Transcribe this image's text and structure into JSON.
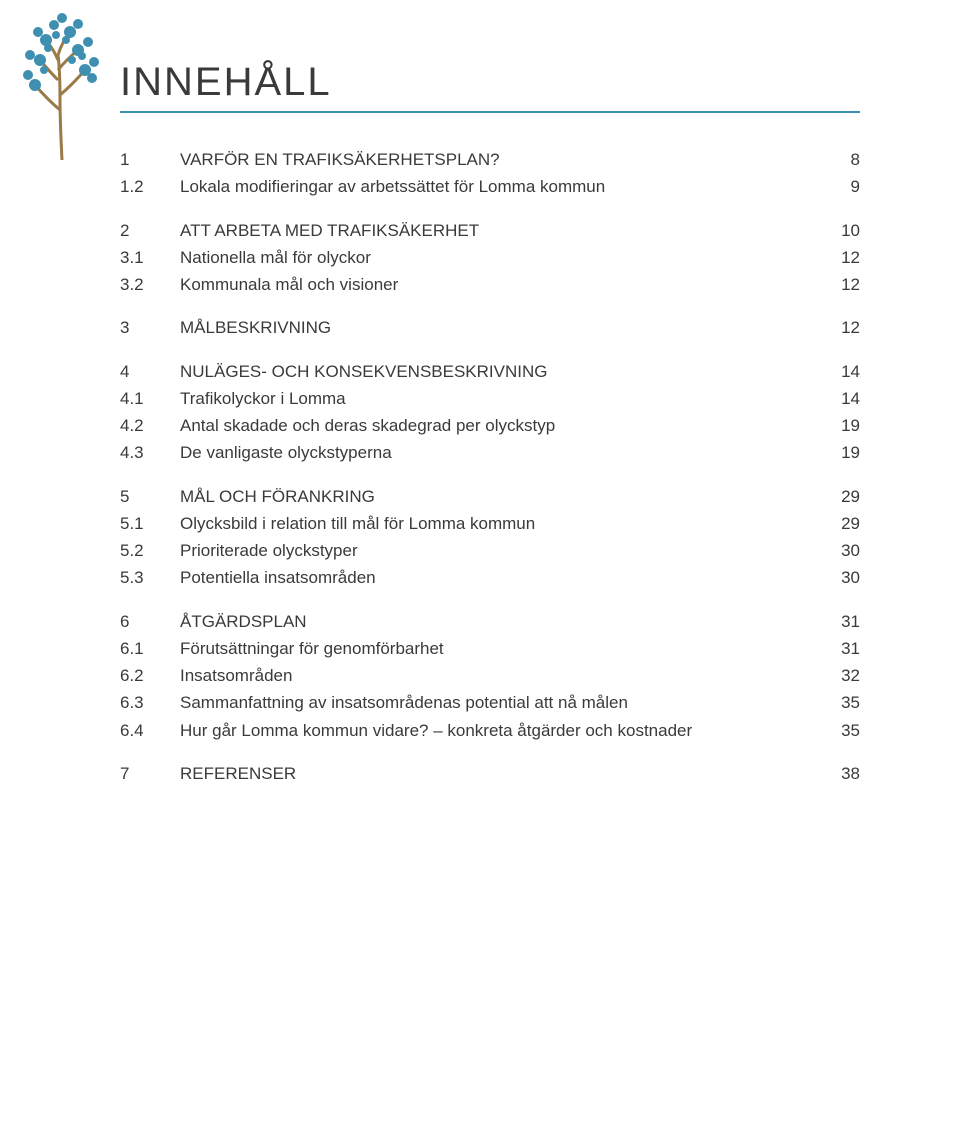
{
  "heading": "INNEHÅLL",
  "rule_color": "#3f8fb0",
  "logo": {
    "leaf_color": "#3f8fb0",
    "trunk_color": "#9a7a47"
  },
  "toc": [
    {
      "num": "1",
      "title": "VARFÖR EN TRAFIKSÄKERHETSPLAN?",
      "page": "8",
      "gap": true
    },
    {
      "num": "1.2",
      "title": "Lokala modifieringar av arbetssättet för Lomma kommun",
      "page": "9",
      "gap": false
    },
    {
      "num": "2",
      "title": "ATT ARBETA MED TRAFIKSÄKERHET",
      "page": "10",
      "gap": true
    },
    {
      "num": "3.1",
      "title": "Nationella mål för olyckor",
      "page": "12",
      "gap": false
    },
    {
      "num": "3.2",
      "title": "Kommunala mål och visioner",
      "page": "12",
      "gap": false
    },
    {
      "num": "3",
      "title": "MÅLBESKRIVNING",
      "page": "12",
      "gap": true
    },
    {
      "num": "4",
      "title": "NULÄGES- OCH KONSEKVENSBESKRIVNING",
      "page": "14",
      "gap": true
    },
    {
      "num": "4.1",
      "title": "Trafikolyckor i Lomma",
      "page": "14",
      "gap": false
    },
    {
      "num": "4.2",
      "title": "Antal skadade och deras skadegrad per olyckstyp",
      "page": "19",
      "gap": false
    },
    {
      "num": "4.3",
      "title": "De vanligaste olyckstyperna",
      "page": "19",
      "gap": false
    },
    {
      "num": "5",
      "title": "MÅL OCH FÖRANKRING",
      "page": "29",
      "gap": true
    },
    {
      "num": "5.1",
      "title": "Olycksbild i relation till mål för Lomma kommun",
      "page": "29",
      "gap": false
    },
    {
      "num": "5.2",
      "title": "Prioriterade olyckstyper",
      "page": "30",
      "gap": false
    },
    {
      "num": "5.3",
      "title": "Potentiella insatsområden",
      "page": "30",
      "gap": false
    },
    {
      "num": "6",
      "title": "ÅTGÄRDSPLAN",
      "page": "31",
      "gap": true
    },
    {
      "num": "6.1",
      "title": "Förutsättningar för genomförbarhet",
      "page": "31",
      "gap": false
    },
    {
      "num": "6.2",
      "title": "Insatsområden",
      "page": "32",
      "gap": false
    },
    {
      "num": "6.3",
      "title": "Sammanfattning av insatsområdenas potential att nå målen",
      "page": "35",
      "gap": false
    },
    {
      "num": "6.4",
      "title": "Hur går Lomma kommun vidare? – konkreta åtgärder och kostnader",
      "page": "35",
      "gap": false
    },
    {
      "num": "7",
      "title": "REFERENSER",
      "page": "38",
      "gap": true
    }
  ]
}
